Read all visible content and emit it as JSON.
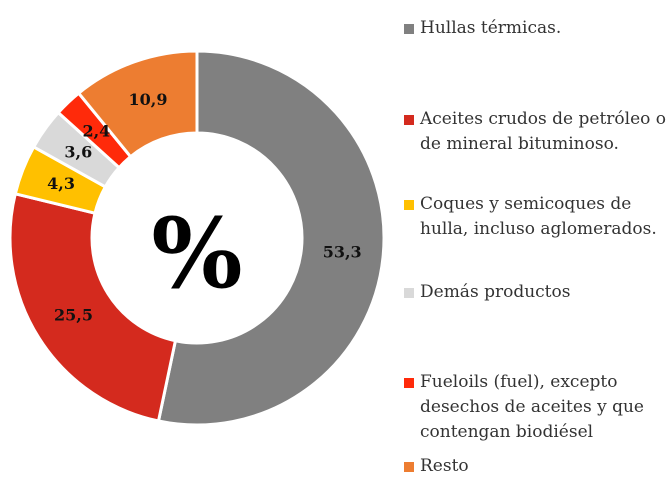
{
  "chart_data": {
    "type": "donut",
    "center_label": "%",
    "series": [
      {
        "name": "Hullas térmicas.",
        "color": "#808080",
        "values": [
          53.3
        ],
        "value_labels": [
          "53,3"
        ]
      },
      {
        "name": "Aceites crudos de petróleo o de mineral bituminoso.",
        "color": "#d42a1e",
        "values": [
          25.5
        ],
        "value_labels": [
          "25,5"
        ]
      },
      {
        "name": "Coques y semicoques de hulla, incluso aglomerados.",
        "color": "#ffc000",
        "values": [
          4.3
        ],
        "value_labels": [
          "4,3"
        ]
      },
      {
        "name": "Demás productos",
        "color": "#d9d9d9",
        "values": [
          3.6
        ],
        "value_labels": [
          "3,6"
        ]
      },
      {
        "name": "Fueloils (fuel), excepto desechos de aceites  y que contengan biodiésel",
        "color": "#ff2a0a",
        "values": [
          2.4
        ],
        "value_labels": [
          "2,4"
        ]
      },
      {
        "name": "Resto",
        "color": "#ed7d31",
        "values": [
          10.9
        ],
        "value_labels": [
          "10,9"
        ]
      }
    ],
    "legend": "right"
  }
}
